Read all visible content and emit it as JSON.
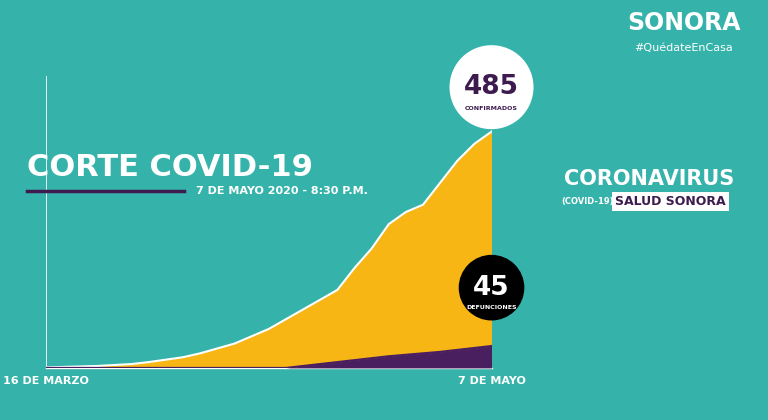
{
  "chart_data": {
    "type": "area",
    "title": "CORTE COVID-19",
    "subtitle": "7 DE MAYO 2020 - 8:30 P.M.",
    "annotations": [
      "SONORA",
      "#QuédateEnCasa",
      "CORONAVIRUS",
      "(COVID-19)",
      "SALUD SONORA"
    ],
    "categories": [
      "16 DE MARZO",
      null,
      null,
      null,
      null,
      null,
      null,
      null,
      null,
      null,
      null,
      null,
      null,
      null,
      null,
      null,
      null,
      null,
      null,
      null,
      null,
      null,
      null,
      null,
      null,
      null,
      "7 DE MAYO"
    ],
    "series": [
      {
        "name": "CONFIRMADOS",
        "color": "#f8b614",
        "values": [
          1,
          2,
          3,
          4,
          6,
          8,
          12,
          17,
          22,
          30,
          40,
          50,
          65,
          80,
          100,
          120,
          140,
          160,
          205,
          245,
          295,
          320,
          335,
          380,
          425,
          460,
          485
        ]
      },
      {
        "name": "DEFUNCIONES",
        "color": "#4a1f5f",
        "values": [
          0,
          0,
          0,
          0,
          0,
          0,
          0,
          0,
          0,
          0,
          0,
          0,
          0,
          0,
          0,
          4,
          8,
          12,
          16,
          20,
          24,
          27,
          30,
          33,
          37,
          41,
          45
        ]
      }
    ],
    "xlim": [
      0,
      26
    ],
    "ylim": [
      0,
      600
    ],
    "yticks": [],
    "stacked": false,
    "grid": false,
    "tick_labels": "x"
  }
}
